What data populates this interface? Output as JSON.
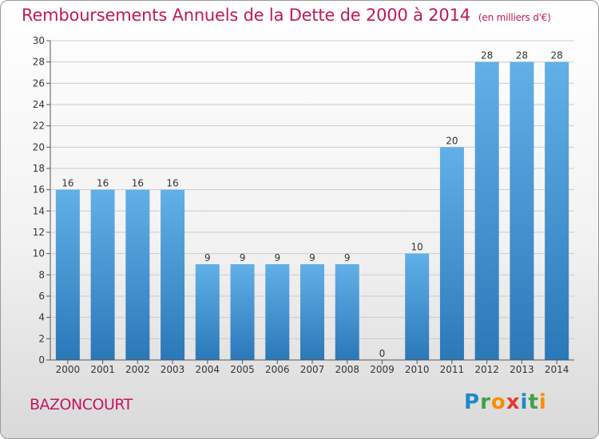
{
  "title": "Remboursements Annuels de la Dette de 2000 à 2014",
  "unit": "(en milliers d'€)",
  "commune": "BAZONCOURT",
  "logo": {
    "letters": [
      {
        "ch": "P",
        "color": "#1e88c8"
      },
      {
        "ch": "r",
        "color": "#43a047"
      },
      {
        "ch": "o",
        "color": "#fb8c00"
      },
      {
        "ch": "x",
        "color": "#e53935"
      },
      {
        "ch": "i",
        "color": "#1e88c8"
      },
      {
        "ch": "t",
        "color": "#43a047"
      },
      {
        "ch": "i",
        "color": "#fb8c00"
      }
    ]
  },
  "colors": {
    "bar_light": "#62b0e8",
    "bar_dark": "#2a78b8",
    "title": "#c2185b",
    "grid": "#cccccc"
  },
  "chart_data": {
    "type": "bar",
    "title": "Remboursements Annuels de la Dette de 2000 à 2014",
    "xlabel": "",
    "ylabel": "",
    "categories": [
      "2000",
      "2001",
      "2002",
      "2003",
      "2004",
      "2005",
      "2006",
      "2007",
      "2008",
      "2009",
      "2010",
      "2011",
      "2012",
      "2013",
      "2014"
    ],
    "values": [
      16,
      16,
      16,
      16,
      9,
      9,
      9,
      9,
      9,
      0,
      10,
      20,
      28,
      28,
      28
    ],
    "ylim": [
      0,
      30
    ],
    "yticks": [
      0,
      2,
      4,
      6,
      8,
      10,
      12,
      14,
      16,
      18,
      20,
      22,
      24,
      26,
      28,
      30
    ],
    "grid": true,
    "legend": "none"
  }
}
